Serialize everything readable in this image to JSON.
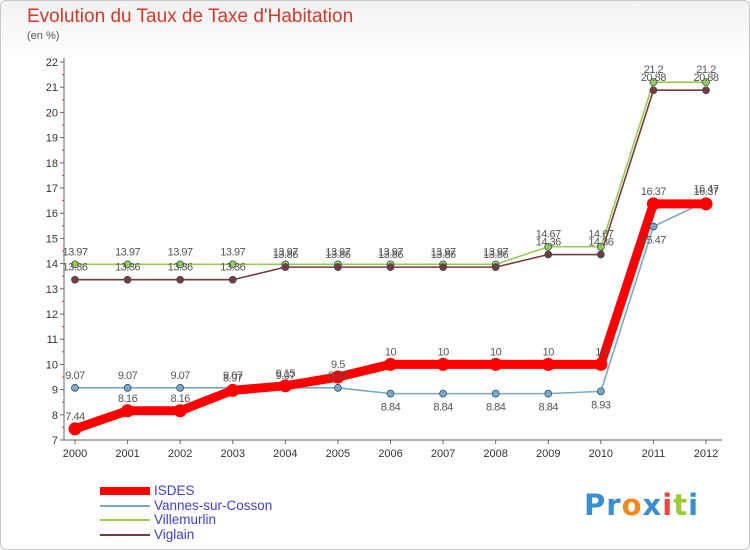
{
  "chart_data": {
    "type": "line",
    "title": "Evolution du Taux de Taxe d'Habitation",
    "subtitle": "(en %)",
    "x": [
      "2000",
      "2001",
      "2002",
      "2003",
      "2004",
      "2005",
      "2006",
      "2007",
      "2008",
      "2009",
      "2010",
      "2011",
      "2012"
    ],
    "ylim": [
      7,
      22
    ],
    "yticks": [
      "7",
      "8",
      "9",
      "10",
      "11",
      "12",
      "13",
      "14",
      "15",
      "16",
      "17",
      "18",
      "19",
      "20",
      "21",
      "22"
    ],
    "grid": false,
    "legend_position": "bottom-left",
    "series": [
      {
        "name": "ISDES",
        "color": "#ff0000",
        "values": [
          7.44,
          8.16,
          8.16,
          8.97,
          9.15,
          9.5,
          10,
          10,
          10,
          10,
          10,
          16.37,
          16.37
        ],
        "labels": [
          "7.44",
          "8.16",
          "8.16",
          "8.97",
          "9.15",
          "9.5",
          "10",
          "10",
          "10",
          "10",
          "10",
          "16.37",
          "16.37"
        ]
      },
      {
        "name": "Vannes-sur-Cosson",
        "color": "#7ba8c8",
        "values": [
          9.07,
          9.07,
          9.07,
          9.07,
          9.07,
          9.07,
          8.84,
          8.84,
          8.84,
          8.84,
          8.93,
          15.47,
          16.47
        ],
        "labels": [
          "9.07",
          "9.07",
          "9.07",
          "9.07",
          "9.07",
          "9.07",
          "8.84",
          "8.84",
          "8.84",
          "8.84",
          "8.93",
          "15.47",
          "16.47"
        ]
      },
      {
        "name": "Villemurlin",
        "color": "#99cc55",
        "values": [
          13.97,
          13.97,
          13.97,
          13.97,
          13.97,
          13.97,
          13.97,
          13.97,
          13.97,
          14.67,
          14.67,
          21.2,
          21.2
        ],
        "labels": [
          "13.97",
          "13.97",
          "13.97",
          "13.97",
          "13.97",
          "13.97",
          "13.97",
          "13.97",
          "13.97",
          "14.67",
          "14.67",
          "21.2",
          "21.2"
        ]
      },
      {
        "name": "Viglain",
        "color": "#7a3a3a",
        "values": [
          13.36,
          13.36,
          13.36,
          13.36,
          13.86,
          13.86,
          13.86,
          13.86,
          13.86,
          14.36,
          14.36,
          20.88,
          20.88
        ],
        "labels": [
          "13.36",
          "13.36",
          "13.36",
          "13.36",
          "13.86",
          "13.86",
          "13.86",
          "13.86",
          "13.86",
          "14.36",
          "14.36",
          "20.88",
          "20.88"
        ]
      }
    ]
  },
  "legend": {
    "items": [
      "ISDES",
      "Vannes-sur-Cosson",
      "Villemurlin",
      "Viglain"
    ]
  },
  "logo": {
    "letters": [
      "P",
      "r",
      "o",
      "x",
      "i",
      "t",
      "i"
    ],
    "colors": [
      "#3a8fd0",
      "#3a8fd0",
      "#f08a20",
      "#3a8fd0",
      "#e84a3a",
      "#99cc33",
      "#3a8fd0"
    ]
  }
}
